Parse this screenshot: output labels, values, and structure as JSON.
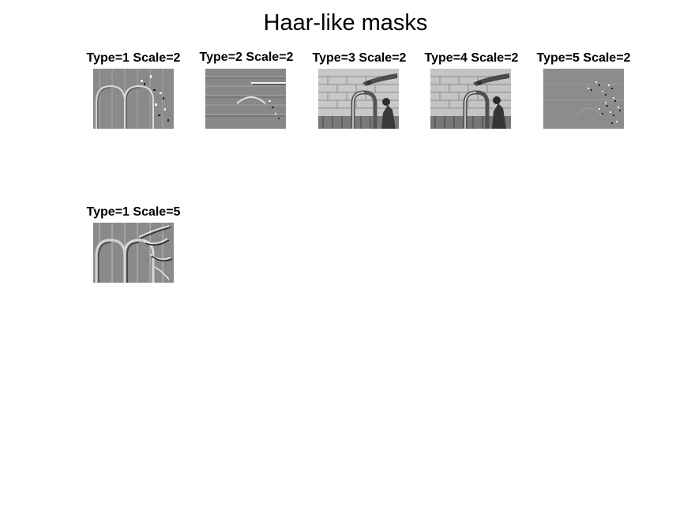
{
  "figure_title": "Haar-like masks",
  "panels": [
    {
      "title": "Type=1 Scale=2",
      "style": "vertical-edge"
    },
    {
      "title": "Type=2 Scale=2",
      "style": "horizontal-edge"
    },
    {
      "title": "Type=3 Scale=2",
      "style": "bright-texture"
    },
    {
      "title": "Type=4 Scale=2",
      "style": "bright-texture"
    },
    {
      "title": "Type=5 Scale=2",
      "style": "diagonal-noise"
    },
    {
      "title": "Type=1 Scale=5",
      "style": "vertical-edge"
    }
  ]
}
